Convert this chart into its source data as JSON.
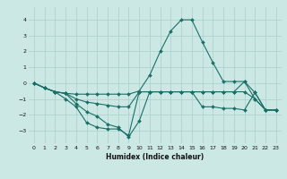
{
  "xlabel": "Humidex (Indice chaleur)",
  "ylabel": "",
  "bg_color": "#cce8e4",
  "grid_color": "#aacfcb",
  "line_color": "#1a7068",
  "xlim": [
    -0.5,
    23.5
  ],
  "ylim": [
    -3.8,
    4.8
  ],
  "yticks": [
    -3,
    -2,
    -1,
    0,
    1,
    2,
    3,
    4
  ],
  "xticks": [
    0,
    1,
    2,
    3,
    4,
    5,
    6,
    7,
    8,
    9,
    10,
    11,
    12,
    13,
    14,
    15,
    16,
    17,
    18,
    19,
    20,
    21,
    22,
    23
  ],
  "lines": [
    {
      "x": [
        0,
        1,
        2,
        3,
        4,
        5,
        6,
        7,
        8,
        9,
        10,
        11,
        12,
        13,
        14,
        15,
        16,
        17,
        18,
        19,
        20,
        21,
        22,
        23
      ],
      "y": [
        0,
        -0.3,
        -0.55,
        -0.65,
        -0.7,
        -0.7,
        -0.7,
        -0.7,
        -0.7,
        -0.7,
        -0.5,
        0.5,
        2.0,
        3.3,
        4.0,
        4.0,
        2.6,
        1.3,
        0.1,
        0.1,
        0.1,
        -0.6,
        -1.7,
        -1.7
      ]
    },
    {
      "x": [
        0,
        1,
        2,
        3,
        4,
        5,
        6,
        7,
        8,
        9,
        10,
        11,
        12,
        13,
        14,
        15,
        16,
        17,
        18,
        19,
        20,
        21,
        22,
        23
      ],
      "y": [
        0,
        -0.3,
        -0.55,
        -0.65,
        -1.3,
        -1.8,
        -2.1,
        -2.6,
        -2.8,
        -3.4,
        -2.4,
        -0.55,
        -0.55,
        -0.55,
        -0.55,
        -0.55,
        -0.55,
        -0.55,
        -0.55,
        -0.55,
        -0.55,
        -1.0,
        -1.7,
        -1.7
      ]
    },
    {
      "x": [
        0,
        1,
        2,
        3,
        4,
        5,
        6,
        7,
        8,
        9,
        10,
        11,
        12,
        13,
        14,
        15,
        16,
        17,
        18,
        19,
        20,
        21,
        22,
        23
      ],
      "y": [
        0,
        -0.3,
        -0.55,
        -1.0,
        -1.5,
        -2.5,
        -2.8,
        -2.9,
        -2.9,
        -3.3,
        -0.55,
        -0.55,
        -0.55,
        -0.55,
        -0.55,
        -0.55,
        -1.5,
        -1.5,
        -1.6,
        -1.6,
        -1.7,
        -0.6,
        -1.7,
        -1.7
      ]
    },
    {
      "x": [
        0,
        1,
        2,
        3,
        4,
        5,
        6,
        7,
        8,
        9,
        10,
        11,
        12,
        13,
        14,
        15,
        16,
        17,
        18,
        19,
        20,
        21,
        22,
        23
      ],
      "y": [
        0,
        -0.3,
        -0.55,
        -0.65,
        -1.0,
        -1.2,
        -1.3,
        -1.4,
        -1.5,
        -1.5,
        -0.55,
        -0.55,
        -0.55,
        -0.55,
        -0.55,
        -0.55,
        -0.55,
        -0.55,
        -0.55,
        -0.55,
        0.1,
        -1.0,
        -1.7,
        -1.7
      ]
    }
  ]
}
